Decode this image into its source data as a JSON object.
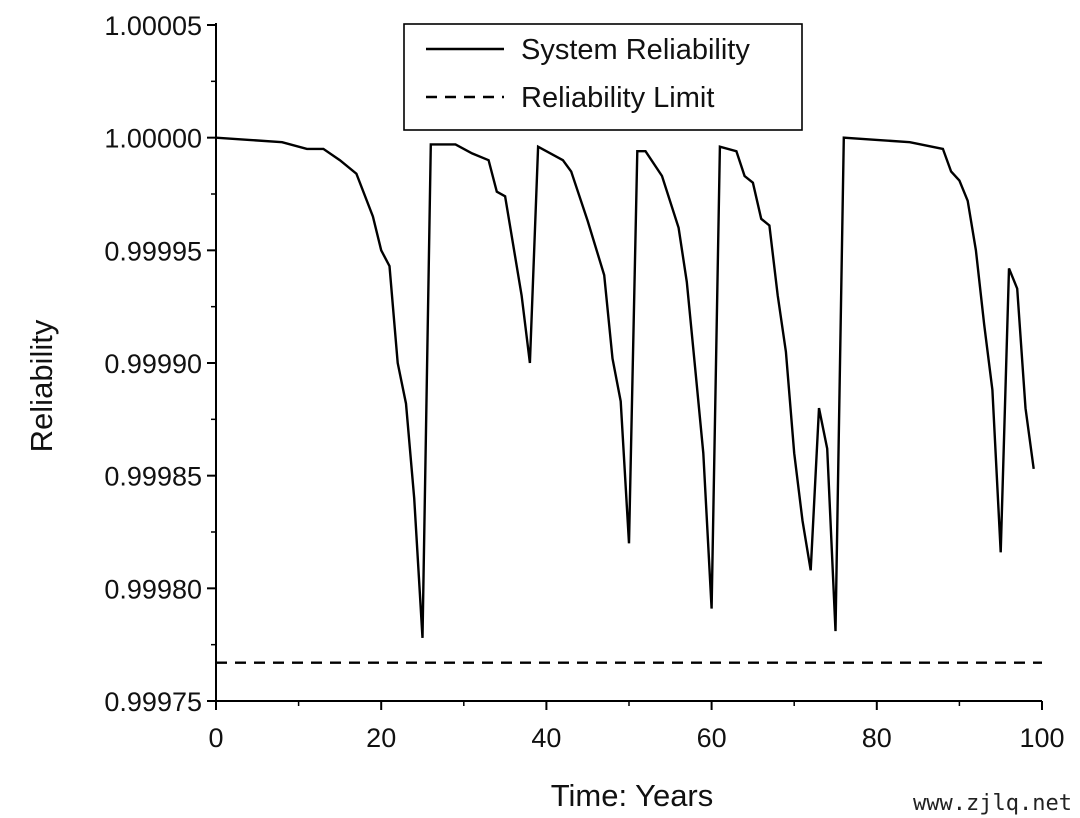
{
  "chart_data": {
    "type": "line",
    "xlabel": "Time: Years",
    "ylabel": "Reliability",
    "xlim": [
      0,
      100
    ],
    "ylim": [
      0.99975,
      1.00005
    ],
    "xticks": [
      "0",
      "20",
      "40",
      "60",
      "80",
      "100"
    ],
    "yticks": [
      "0.99975",
      "0.99980",
      "0.99985",
      "0.99990",
      "0.99995",
      "1.00000",
      "1.00005"
    ],
    "legend_position": "top-center",
    "series": [
      {
        "name": "System Reliability",
        "style": "solid",
        "color": "#000000",
        "points": [
          [
            0,
            1.0
          ],
          [
            4,
            0.999999
          ],
          [
            8,
            0.999998
          ],
          [
            11,
            0.999995
          ],
          [
            13,
            0.999995
          ],
          [
            15,
            0.99999
          ],
          [
            17,
            0.999984
          ],
          [
            19,
            0.999965
          ],
          [
            20,
            0.99995
          ],
          [
            21,
            0.999943
          ],
          [
            22,
            0.9999
          ],
          [
            23,
            0.999882
          ],
          [
            24,
            0.99984
          ],
          [
            25,
            0.999778
          ],
          [
            26,
            0.999997
          ],
          [
            29,
            0.999997
          ],
          [
            31,
            0.999993
          ],
          [
            33,
            0.99999
          ],
          [
            34,
            0.999976
          ],
          [
            35,
            0.999974
          ],
          [
            37,
            0.99993
          ],
          [
            38,
            0.9999
          ],
          [
            39,
            0.999996
          ],
          [
            42,
            0.99999
          ],
          [
            43,
            0.999985
          ],
          [
            45,
            0.999963
          ],
          [
            47,
            0.999939
          ],
          [
            48,
            0.999902
          ],
          [
            49,
            0.999883
          ],
          [
            50,
            0.99982
          ],
          [
            51,
            0.999994
          ],
          [
            52,
            0.999994
          ],
          [
            54,
            0.999983
          ],
          [
            56,
            0.99996
          ],
          [
            57,
            0.999936
          ],
          [
            58,
            0.999898
          ],
          [
            59,
            0.99986
          ],
          [
            60,
            0.999791
          ],
          [
            61,
            0.999996
          ],
          [
            63,
            0.999994
          ],
          [
            64,
            0.999983
          ],
          [
            65,
            0.99998
          ],
          [
            66,
            0.999964
          ],
          [
            67,
            0.999961
          ],
          [
            68,
            0.99993
          ],
          [
            69,
            0.999905
          ],
          [
            70,
            0.99986
          ],
          [
            71,
            0.99983
          ],
          [
            72,
            0.999808
          ],
          [
            73,
            0.99988
          ],
          [
            74,
            0.999862
          ],
          [
            75,
            0.999781
          ],
          [
            76,
            1.0
          ],
          [
            80,
            0.999999
          ],
          [
            84,
            0.999998
          ],
          [
            88,
            0.999995
          ],
          [
            89,
            0.999985
          ],
          [
            90,
            0.999981
          ],
          [
            91,
            0.999972
          ],
          [
            92,
            0.99995
          ],
          [
            93,
            0.999917
          ],
          [
            94,
            0.999888
          ],
          [
            95,
            0.999816
          ],
          [
            96,
            0.999942
          ],
          [
            97,
            0.999933
          ],
          [
            98,
            0.99988
          ],
          [
            99,
            0.999853
          ]
        ]
      },
      {
        "name": "Reliability Limit",
        "style": "dashed",
        "color": "#000000",
        "points": [
          [
            0,
            0.999767
          ],
          [
            100,
            0.999767
          ]
        ]
      }
    ]
  },
  "watermark": "www.zjlq.net"
}
